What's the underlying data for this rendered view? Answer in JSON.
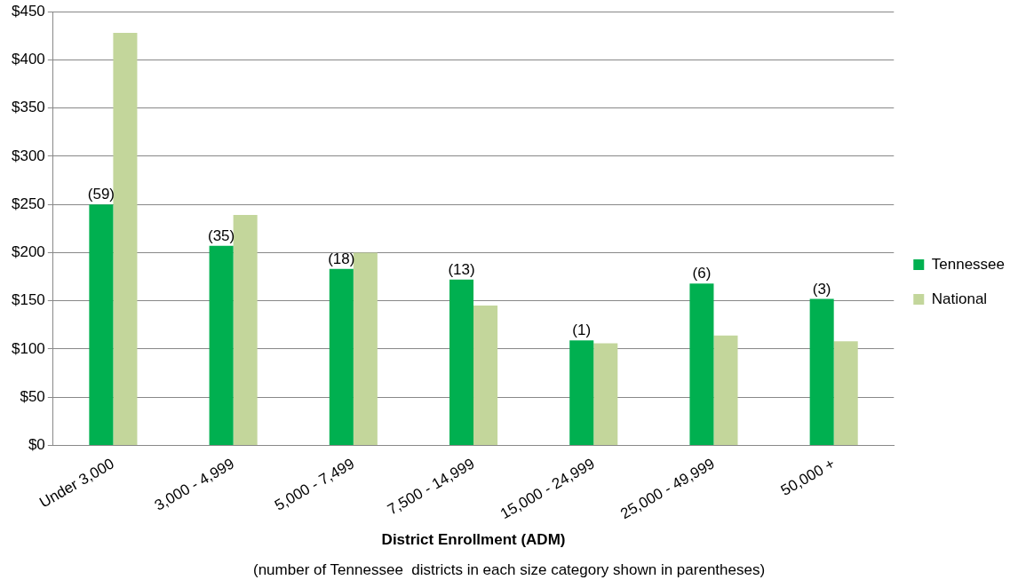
{
  "chart_data": {
    "type": "bar",
    "xlabel": "District Enrollment (ADM)",
    "categories": [
      "Under 3,000",
      "3,000 - 4,999",
      "5,000 - 7,499",
      "7,500 - 14,999",
      "15,000 - 24,999",
      "25,000 - 49,999",
      "50,000 +"
    ],
    "series": [
      {
        "name": "Tennessee",
        "color": "#00b050",
        "values": [
          250,
          207,
          183,
          172,
          109,
          168,
          152
        ]
      },
      {
        "name": "National",
        "color": "#c3d69b",
        "values": [
          428,
          239,
          200,
          145,
          106,
          114,
          108
        ]
      }
    ],
    "ylim": [
      0,
      450
    ],
    "yticks": [
      {
        "value": 0,
        "label": "$0"
      },
      {
        "value": 50,
        "label": "$50"
      },
      {
        "value": 100,
        "label": "$100"
      },
      {
        "value": 150,
        "label": "$150"
      },
      {
        "value": 200,
        "label": "$200"
      },
      {
        "value": 250,
        "label": "$250"
      },
      {
        "value": 300,
        "label": "$300"
      },
      {
        "value": 350,
        "label": "$350"
      },
      {
        "value": 400,
        "label": "$400"
      },
      {
        "value": 450,
        "label": "$450"
      }
    ],
    "grid": "y",
    "legend": "right",
    "annotations": [
      {
        "text": "(59)",
        "x": "Under 3,000",
        "y": 250
      },
      {
        "text": "(35)",
        "x": "3,000 - 4,999",
        "y": 207
      },
      {
        "text": "(18)",
        "x": "5,000 - 7,499",
        "y": 183
      },
      {
        "text": "(13)",
        "x": "7,500 - 14,999",
        "y": 172
      },
      {
        "text": "(1)",
        "x": "15,000 - 24,999",
        "y": 109
      },
      {
        "text": "(6)",
        "x": "25,000 - 49,999",
        "y": 168
      },
      {
        "text": "(3)",
        "x": "50,000 +",
        "y": 152
      },
      "(number of Tennessee  districts in each size category shown in parentheses)"
    ]
  }
}
